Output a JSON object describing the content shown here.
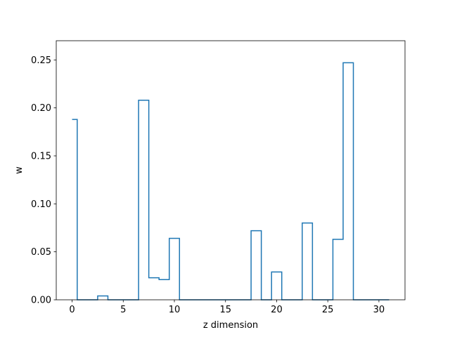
{
  "chart_data": {
    "type": "line",
    "drawstyle": "steps-mid",
    "title": "",
    "xlabel": "z dimension",
    "ylabel": "w",
    "xlim": [
      -1.55,
      32.55
    ],
    "ylim": [
      0,
      0.27
    ],
    "grid": false,
    "legend": "none",
    "x_ticks": [
      0,
      5,
      10,
      15,
      20,
      25,
      30
    ],
    "x_tick_labels": [
      "0",
      "5",
      "10",
      "15",
      "20",
      "25",
      "30"
    ],
    "y_ticks": [
      0.0,
      0.05,
      0.1,
      0.15,
      0.2,
      0.25
    ],
    "y_tick_labels": [
      "0.00",
      "0.05",
      "0.10",
      "0.15",
      "0.20",
      "0.25"
    ],
    "series": [
      {
        "color": "#1f77b4",
        "x": [
          0,
          1,
          2,
          3,
          4,
          5,
          6,
          7,
          8,
          9,
          10,
          11,
          12,
          13,
          14,
          15,
          16,
          17,
          18,
          19,
          20,
          21,
          22,
          23,
          24,
          25,
          26,
          27,
          28,
          29,
          30,
          31
        ],
        "y": [
          0.188,
          0,
          0,
          0.004,
          0,
          0,
          0,
          0.208,
          0.023,
          0.021,
          0.064,
          0,
          0,
          0,
          0,
          0,
          0,
          0,
          0.072,
          0,
          0.029,
          0,
          0,
          0.08,
          0,
          0,
          0.063,
          0.247,
          0,
          0,
          0,
          0
        ]
      }
    ]
  }
}
